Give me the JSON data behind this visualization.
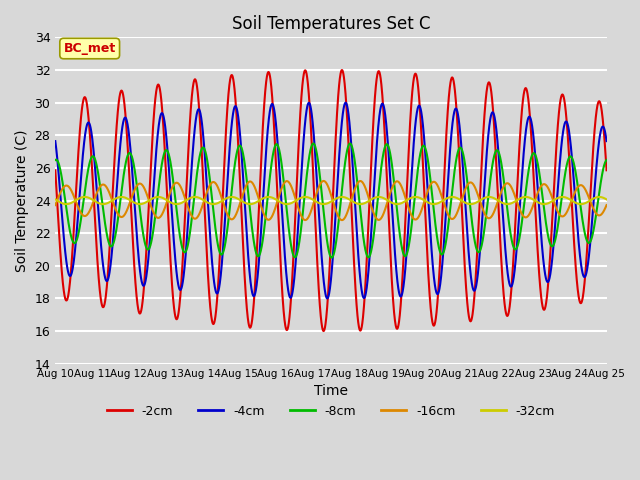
{
  "title": "Soil Temperatures Set C",
  "xlabel": "Time",
  "ylabel": "Soil Temperature (C)",
  "ylim": [
    14,
    34
  ],
  "x_tick_labels": [
    "Aug 10",
    "Aug 11",
    "Aug 12",
    "Aug 13",
    "Aug 14",
    "Aug 15",
    "Aug 16",
    "Aug 17",
    "Aug 18",
    "Aug 19",
    "Aug 20",
    "Aug 21",
    "Aug 22",
    "Aug 23",
    "Aug 24",
    "Aug 25"
  ],
  "series_order": [
    "-2cm",
    "-4cm",
    "-8cm",
    "-16cm",
    "-32cm"
  ],
  "colors": {
    "-2cm": "#dd0000",
    "-4cm": "#0000cc",
    "-8cm": "#00bb00",
    "-16cm": "#dd8800",
    "-32cm": "#cccc00"
  },
  "mean": 24.0,
  "period": 1.0,
  "annotation_text": "BC_met",
  "annotation_color": "#cc0000",
  "annotation_bg": "#ffffaa",
  "annotation_border": "#999900",
  "bg_color": "#d8d8d8",
  "plot_bg_color": "#d8d8d8",
  "grid_color": "#ffffff",
  "figsize": [
    6.4,
    4.8
  ],
  "dpi": 100
}
